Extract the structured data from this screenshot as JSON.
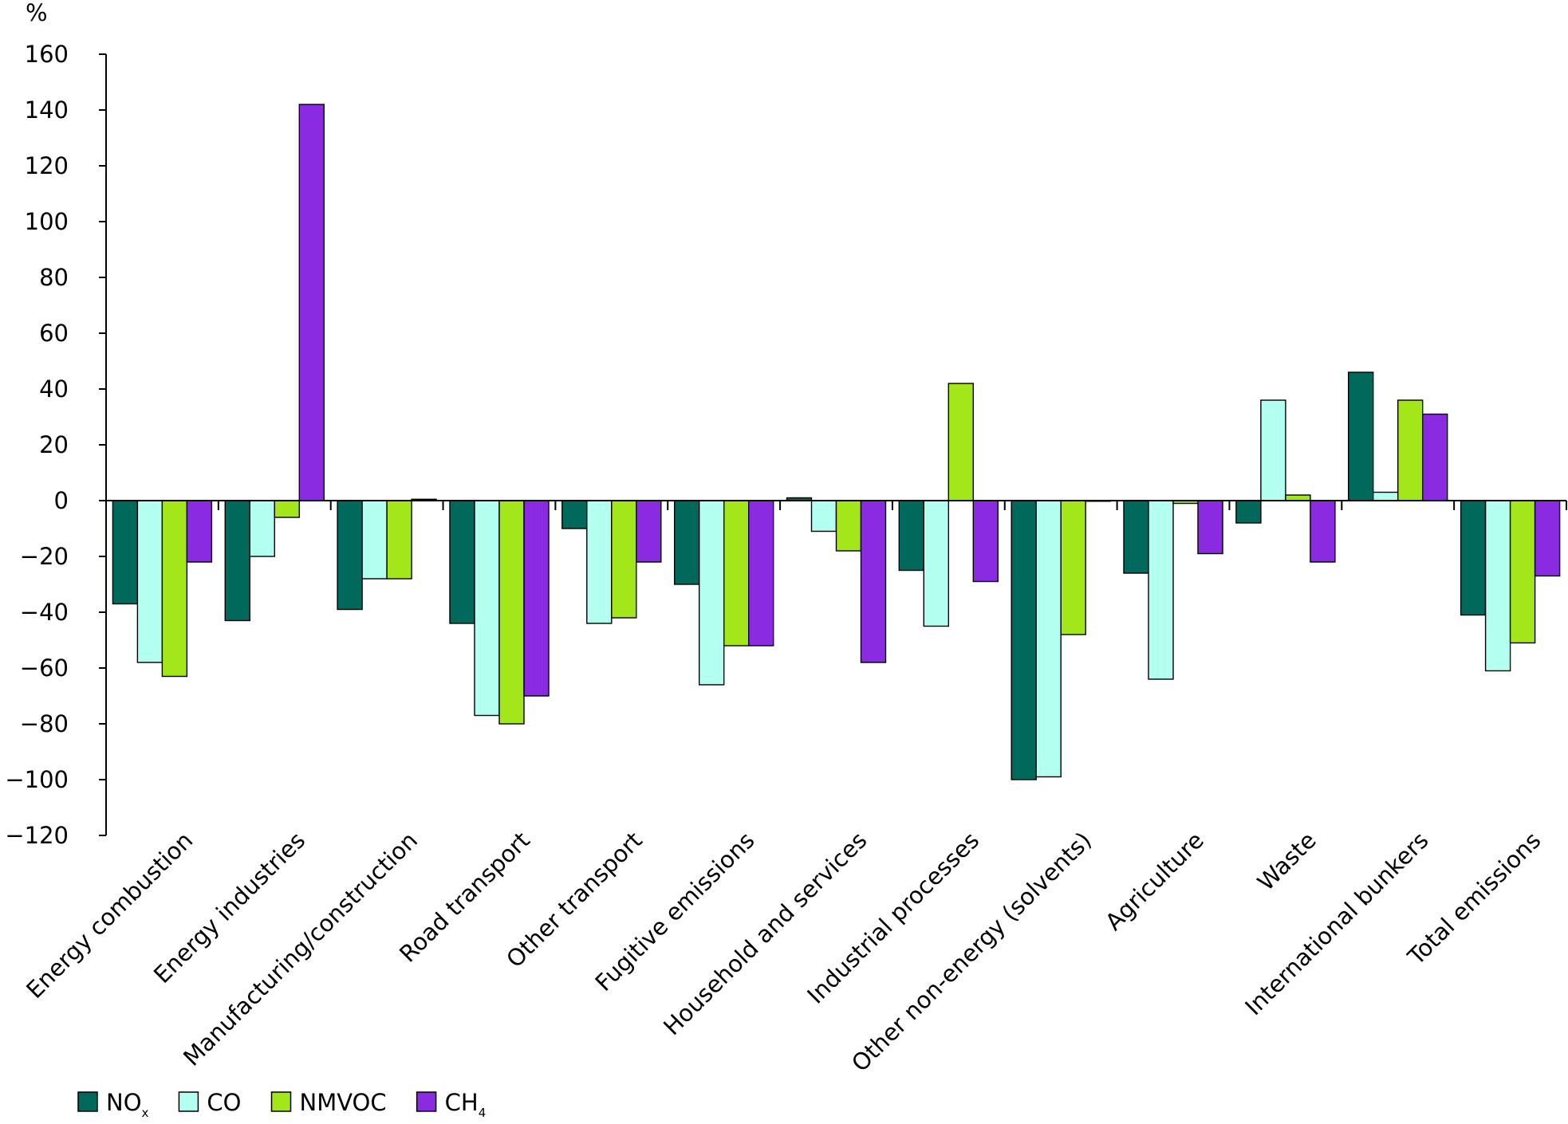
{
  "chart_data": {
    "type": "bar",
    "unit_label": "%",
    "categories": [
      "Energy combustion",
      "Energy industries",
      "Manufacturing/construction",
      "Road transport",
      "Other transport",
      "Fugitive emissions",
      "Household and services",
      "Industrial processes",
      "Other non-energy (solvents)",
      "Agriculture",
      "Waste",
      "International bunkers",
      "Total emissions"
    ],
    "series": [
      {
        "name": "NOx",
        "legend_main": "NO",
        "legend_sub": "x",
        "color": "#00695c",
        "values": [
          -37,
          -43,
          -39,
          -44,
          -10,
          -30,
          1,
          -25,
          -100,
          -26,
          -8,
          46,
          -41
        ]
      },
      {
        "name": "CO",
        "legend_main": "CO",
        "legend_sub": "",
        "color": "#b3fff0",
        "values": [
          -58,
          -20,
          -28,
          -77,
          -44,
          -66,
          -11,
          -45,
          -99,
          -64,
          36,
          3,
          -61
        ]
      },
      {
        "name": "NMVOC",
        "legend_main": "NMVOC",
        "legend_sub": "",
        "color": "#a3e619",
        "values": [
          -63,
          -6,
          -28,
          -80,
          -42,
          -52,
          -18,
          42,
          -48,
          -1,
          2,
          36,
          -51
        ]
      },
      {
        "name": "CH4",
        "legend_main": "CH",
        "legend_sub": "4",
        "color": "#8a2be2",
        "values": [
          -22,
          142,
          0.5,
          -70,
          -22,
          -52,
          -58,
          -29,
          0,
          -19,
          -22,
          31,
          -27
        ]
      }
    ],
    "ylim": [
      -120,
      160
    ],
    "yticks": [
      -120,
      -100,
      -80,
      -60,
      -40,
      -20,
      0,
      20,
      40,
      60,
      80,
      100,
      120,
      140,
      160
    ],
    "ytick_labels": [
      "−120",
      "−100",
      "−80",
      "−60",
      "−40",
      "−20",
      "0",
      "20",
      "40",
      "60",
      "80",
      "100",
      "120",
      "140",
      "160"
    ],
    "grid": false,
    "legend_position": "bottom-left"
  }
}
